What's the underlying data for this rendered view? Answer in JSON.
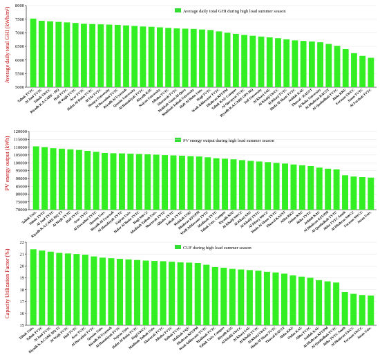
{
  "colors": {
    "bar": "#33ee22",
    "legend_swatch": "#33dd33",
    "axis": "#000000",
    "ylabel": "#c00000"
  },
  "chart_data": [
    {
      "type": "bar",
      "ylabel": "Average daily total GHI (kWh/m²)",
      "legend": "Average daily total GHI during high load summer season",
      "legend_position": "top-right",
      "ylim": [
        5000,
        8000
      ],
      "yticks": [
        5000,
        5500,
        6000,
        6500,
        7000,
        7500,
        8000
      ],
      "categories": [
        "Tabuk TVTC",
        "Al Jouf TVTC",
        "Tabuk SWCC",
        "Riyadh K.A.CARE - HQ",
        "Hail TVTC",
        "Al Wajh TVTC",
        "Arar TVTC",
        "Hafar Al Batin TVTC",
        "Al Ula TVTC",
        "Shaqra University",
        "Al Dawadmi TVTC",
        "Riyadh Al Uyaynah",
        "Qassim University",
        "Al Hanakiyah TVTC",
        "Riyadh KSU",
        "Najran University",
        "Albaha TVTC",
        "Sharurah TVTC",
        "Makkah Umm Al-Qura",
        "Madinah Taibah University",
        "Hafr Al Batin Univ.",
        "Hagl TVTC",
        "Wadi Addawasir TVTC",
        "Dhahran KFUPM",
        "Tabuk KAU Campus",
        "Al Qurayyat TVTC",
        "Riyadh K.A.CARE OPS HQ",
        "Taif University",
        "Al Kharj SAU",
        "Al Khafji SWCC",
        "Al Kharj TVTC",
        "Huda Al Sham TVTC",
        "Jeddah KAU",
        "Thuwal - KAUST",
        "Al Baha University",
        "Al Dhahran KACST",
        "Al Qunfudhah TVTC",
        "Abha KKU",
        "Farasan SWCC",
        "Jazan TVTC",
        "Al Farshah TVTC"
      ],
      "values": [
        7520,
        7440,
        7420,
        7400,
        7380,
        7360,
        7330,
        7320,
        7310,
        7300,
        7290,
        7270,
        7250,
        7230,
        7220,
        7200,
        7180,
        7160,
        7150,
        7140,
        7120,
        7100,
        7050,
        7000,
        6960,
        6920,
        6890,
        6860,
        6830,
        6800,
        6760,
        6720,
        6700,
        6680,
        6650,
        6590,
        6520,
        6400,
        6250,
        6150,
        6080
      ]
    },
    {
      "type": "bar",
      "ylabel": "PV energy output (kWh)",
      "legend": "PV energy output during high load summer season",
      "legend_position": "top-right",
      "ylim": [
        70000,
        120000
      ],
      "yticks": [
        70000,
        75000,
        80000,
        85000,
        90000,
        95000,
        100000,
        105000,
        110000,
        115000,
        120000
      ],
      "categories": [
        "Tabuk Univ.",
        "Tabuk TVTC",
        "Al Jouf TVTC",
        "Riyadh K.A.CARE HQ T2",
        "Al Wajh TVTC",
        "Hail TVTC",
        "Arar TVTC",
        "Al Dawadmi TVTC",
        "Qassim Univ.",
        "Riyadh Al Uyaynah",
        "Al Hanakiyah TVTC",
        "Najran Univ.",
        "Hafar Al Batin TVTC",
        "Hagl SWCC",
        "Madinah Taibah Univ.",
        "Sharurah TVTC",
        "Albaha TVTC",
        "Taibah TVTC",
        "Makkah UQU",
        "Dhahran KFUPM",
        "Wadi Addawasir TVTC",
        "Madinah TVTC",
        "Tabuk Univ. Campus",
        "Riyadh KSU",
        "Al Khafji SWCC",
        "Al Kharj SAU",
        "Al Khafji TVTC",
        "Al Kharj SWCC",
        "Huda Al Sham TVTC",
        "Thuwal KAUST",
        "Abha KKU",
        "Oulan KAU",
        "Abha TVTC",
        "Jeddah KAU",
        "Al Dhahran KFUPM",
        "Al Qunfudhah TVTC",
        "Abha TVTC South",
        "Al Dhahran SWCC",
        "Farasan SWCC",
        "Jazan Univ."
      ],
      "values": [
        110500,
        110000,
        109300,
        109000,
        108600,
        108200,
        107600,
        107000,
        106300,
        106100,
        106000,
        105800,
        105600,
        105400,
        105200,
        104900,
        104700,
        104500,
        104200,
        104000,
        103500,
        102900,
        102600,
        102200,
        101700,
        101200,
        100800,
        100400,
        99900,
        99500,
        98900,
        98400,
        97900,
        96900,
        96200,
        95800,
        92000,
        91200,
        90800,
        90500
      ]
    },
    {
      "type": "bar",
      "ylabel": "Capacity Utilization Factor (%)",
      "legend": "CUF during high load summer season",
      "legend_position": "top-right",
      "ylim": [
        15,
        22
      ],
      "yticks": [
        15,
        16,
        17,
        18,
        19,
        20,
        21,
        22
      ],
      "categories": [
        "Tabuk Univ.",
        "Tabuk TVTC",
        "Al Jouf TVTC",
        "Riyadh K.A.CARE HQ T2",
        "Al Wajh TVTC",
        "Hail TVTC",
        "Arar TVTC",
        "Al Dawadmi TVTC",
        "Qassim Univ.",
        "Riyadh Al Uyaynah",
        "Al Hanakiyah TVTC",
        "Najran Univ.",
        "Hafar Al Batin TVTC",
        "Hagl SWCC",
        "Madinah Taibah Univ.",
        "Sharurah TVTC",
        "Albaha TVTC",
        "Taibah TVTC",
        "Makkah UQU",
        "Dhahran KFUPM",
        "Wadi Addawasir TVTC",
        "Madinah TVTC",
        "Tabuk Univ. Campus",
        "Riyadh KSU",
        "Al Khafji SWCC",
        "Al Kharj SAU",
        "Al Khafji TVTC",
        "Al Kharj SWCC",
        "Huda Al Sham TVTC",
        "Thuwal KAUST",
        "Abha KKU",
        "Oulan KAU",
        "Abha TVTC",
        "Jeddah KAU",
        "Al Dhahran KFUPM",
        "Al Qunfudhah TVTC",
        "Abha TVTC South",
        "Al Dhahran SWCC",
        "Farasan SWCC",
        "Jazan Univ."
      ],
      "values": [
        21.4,
        21.3,
        21.2,
        21.1,
        21.05,
        21.0,
        20.95,
        20.8,
        20.7,
        20.65,
        20.6,
        20.55,
        20.5,
        20.45,
        20.42,
        20.4,
        20.35,
        20.3,
        20.28,
        20.25,
        20.1,
        19.9,
        19.85,
        19.75,
        19.7,
        19.65,
        19.6,
        19.5,
        19.45,
        19.35,
        19.2,
        19.1,
        19.0,
        18.8,
        18.7,
        18.6,
        17.8,
        17.65,
        17.55,
        17.5
      ]
    }
  ]
}
